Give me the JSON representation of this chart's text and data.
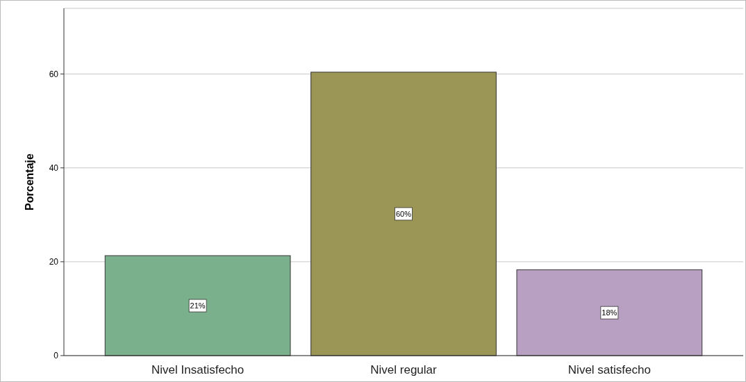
{
  "chart_data": {
    "type": "bar",
    "ylabel": "Porcentaje",
    "categories": [
      "Nivel Insatisfecho",
      "Nivel regular",
      "Nivel satisfecho"
    ],
    "values": [
      21.3,
      60.4,
      18.3
    ],
    "colors": [
      "#7ab08c",
      "#9b9656",
      "#b8a0c2"
    ],
    "value_labels": [
      "21%",
      "60%",
      "18%"
    ],
    "ylim": [
      0,
      74
    ],
    "yticks": [
      0,
      20,
      40,
      60
    ],
    "grid": "y"
  }
}
